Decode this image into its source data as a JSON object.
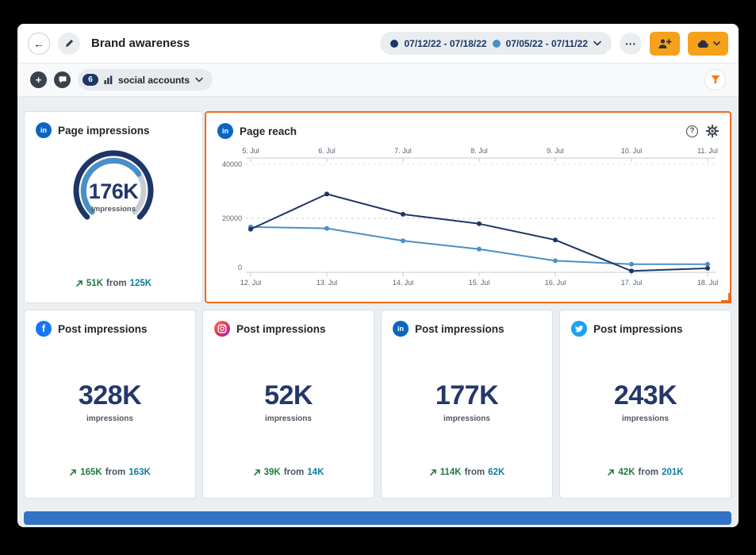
{
  "icons": {
    "back": "←",
    "plus": "+",
    "more": "···",
    "help": "?",
    "linkedin_glyph": "in",
    "facebook_glyph": "f"
  },
  "header": {
    "title": "Brand awareness",
    "date_ranges": {
      "current": "07/12/22 - 07/18/22",
      "previous": "07/05/22 - 07/11/22"
    }
  },
  "toolbar": {
    "accounts_count": "6",
    "accounts_label": "social accounts"
  },
  "cards": {
    "page_impressions": {
      "network": "linkedin",
      "title": "Page impressions",
      "value": "176K",
      "unit": "impressions",
      "delta": "51K",
      "from_label": "from",
      "previous": "125K",
      "gauge": {
        "previous_ratio": 0.71
      }
    },
    "page_reach": {
      "network": "linkedin",
      "title": "Page reach"
    },
    "post_impressions": [
      {
        "network": "facebook",
        "title": "Post impressions",
        "value": "328K",
        "unit": "impressions",
        "delta": "165K",
        "from_label": "from",
        "previous": "163K"
      },
      {
        "network": "instagram",
        "title": "Post impressions",
        "value": "52K",
        "unit": "impressions",
        "delta": "39K",
        "from_label": "from",
        "previous": "14K"
      },
      {
        "network": "linkedin",
        "title": "Post impressions",
        "value": "177K",
        "unit": "impressions",
        "delta": "114K",
        "from_label": "from",
        "previous": "62K"
      },
      {
        "network": "twitter",
        "title": "Post impressions",
        "value": "243K",
        "unit": "impressions",
        "delta": "42K",
        "from_label": "from",
        "previous": "201K"
      }
    ]
  },
  "chart_data": {
    "type": "line",
    "title": "Page reach",
    "x_top": [
      "5. Jul",
      "6. Jul",
      "7. Jul",
      "8. Jul",
      "9. Jul",
      "10. Jul",
      "11. Jul"
    ],
    "x_bottom": [
      "12. Jul",
      "13. Jul",
      "14. Jul",
      "15. Jul",
      "16. Jul",
      "17. Jul",
      "18. Jul"
    ],
    "ylim": [
      0,
      40000
    ],
    "yticks": [
      0,
      20000,
      40000
    ],
    "grid": "dashed-horizontal",
    "legend": "none",
    "series": [
      {
        "name": "07/12/22 - 07/18/22",
        "color": "#1D3666",
        "values": [
          16000,
          29000,
          21500,
          18000,
          12000,
          500,
          1500
        ]
      },
      {
        "name": "07/05/22 - 07/11/22",
        "color": "#4A8FC7",
        "values": [
          16800,
          16300,
          11700,
          8600,
          4300,
          3000,
          3000
        ]
      }
    ]
  },
  "colors": {
    "button_orange": "#F5A11C",
    "selection_orange": "#EE6B1B",
    "navy": "#1D3666",
    "light_blue": "#4A8FC7",
    "positive_green": "#1E7D3C",
    "previous_teal": "#0E7E9A",
    "linkedin_blue": "#0A66C2",
    "facebook_blue": "#1877F2",
    "instagram_pink": "#E1306C",
    "twitter_blue": "#1DA1F2",
    "gauge_track": "#C7CDD3",
    "partial_widget_blue": "#3273C5"
  }
}
